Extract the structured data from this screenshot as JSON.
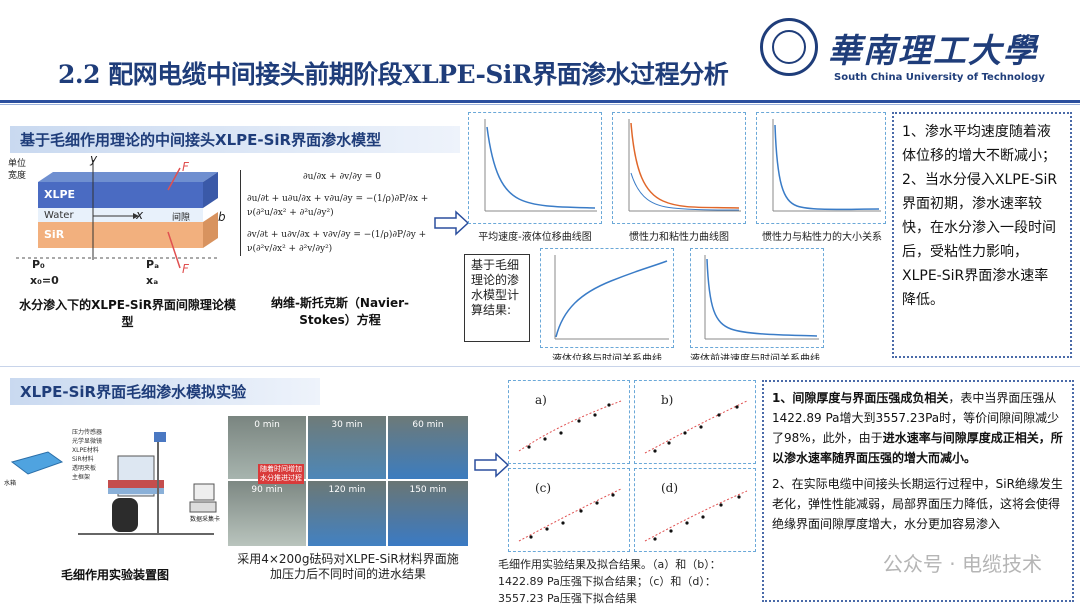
{
  "title": "2.2 配网电缆中间接头前期阶段XLPE-SiR界面渗水过程分析",
  "logo": {
    "cn": "華南理工大學",
    "en": "South China University of Technology"
  },
  "section1": {
    "heading": "基于毛细作用理论的中间接头XLPE-SiR界面渗水模型",
    "model_caption": "水分渗入下的XLPE-SiR界面间隙理论模型",
    "ns_caption": "纳维-斯托克斯（Navier-Stokes）方程",
    "diagram": {
      "unit_width": "单位\n宽度",
      "xlpe": "XLPE",
      "water": "Water",
      "sir": "SiR",
      "gap": "间隙",
      "b": "b",
      "y": "y",
      "x": "x",
      "F": "F",
      "P0": "P₀",
      "Pa": "Pₐ",
      "x0": "x₀=0",
      "xa": "xₐ"
    },
    "equations": {
      "eq1": "∂u/∂x + ∂v/∂y = 0",
      "eq2": "∂u/∂t + u∂u/∂x + v∂u/∂y = −(1/ρ)∂P/∂x + ν(∂²u/∂x² + ∂²u/∂y²)",
      "eq3": "∂v/∂t + u∂v/∂x + v∂v/∂y = −(1/ρ)∂P/∂y + ν(∂²v/∂x² + ∂²v/∂y²)"
    },
    "chart_captions": [
      "平均速度-液体位移曲线图",
      "惯性力和粘性力曲线图",
      "惯性力与粘性力的大小关系"
    ],
    "calc_label": "基于毛细理论的渗水模型计算结果:",
    "bottom_captions": [
      "液体位移与时间关系曲线",
      "液体前进速度与时间关系曲线"
    ],
    "conclusion": [
      "1、渗水平均速度随着液体位移的增大不断减小；",
      "2、当水分侵入XLPE-SiR界面初期，渗水速率较快，在水分渗入一段时间后，受粘性力影响，XLPE-SiR界面渗水速率降低。"
    ]
  },
  "section2": {
    "heading": "XLPE-SiR界面毛细渗水模拟实验",
    "setup_caption": "毛细作用实验装置图",
    "setup_labels": [
      "水箱",
      "XLPE",
      "SiR",
      "压力传感器",
      "光学显微镜",
      "XLPE材料",
      "SiR材料",
      "透明夹板",
      "主框架",
      "数据采集卡",
      "计算机"
    ],
    "photo_times": [
      "0 min",
      "30 min",
      "60 min",
      "90 min",
      "120 min",
      "150 min"
    ],
    "photo_note": "随着时间增加水分推进过程",
    "photo_caption": "采用4×200g砝码对XLPE-SiR材料界面施加压力后不同时间的进水结果",
    "fit_labels": [
      "a)",
      "b)",
      "(c)",
      "(d)"
    ],
    "fit_caption": "毛细作用实验结果及拟合结果。（a）和（b）：1422.89 Pa压强下拟合结果；（c）和（d）：3557.23 Pa压强下拟合结果",
    "result": {
      "p1_bold": "1、间隙厚度与界面压强成负相关",
      "p1_rest": "，表中当界面压强从1422.89 Pa增大到3557.23Pa时，等价间隙间隙减少了98%，此外，由于",
      "p1_bold2": "进水速率与间隙厚度成正相关，所以渗水速率随界面压强的增大而减小。",
      "p2": "2、在实际电缆中间接头长期运行过程中，SiR绝缘发生老化，弹性性能减弱，局部界面压力降低，这将会使得绝缘界面间隙厚度增大，水分更加容易渗入"
    }
  },
  "watermark": "公众号 · 电缆技术",
  "colors": {
    "accent": "#1f3d7a",
    "curve_blue": "#3a7cc7",
    "curve_orange": "#e0672a",
    "fit_red": "#e05050"
  }
}
